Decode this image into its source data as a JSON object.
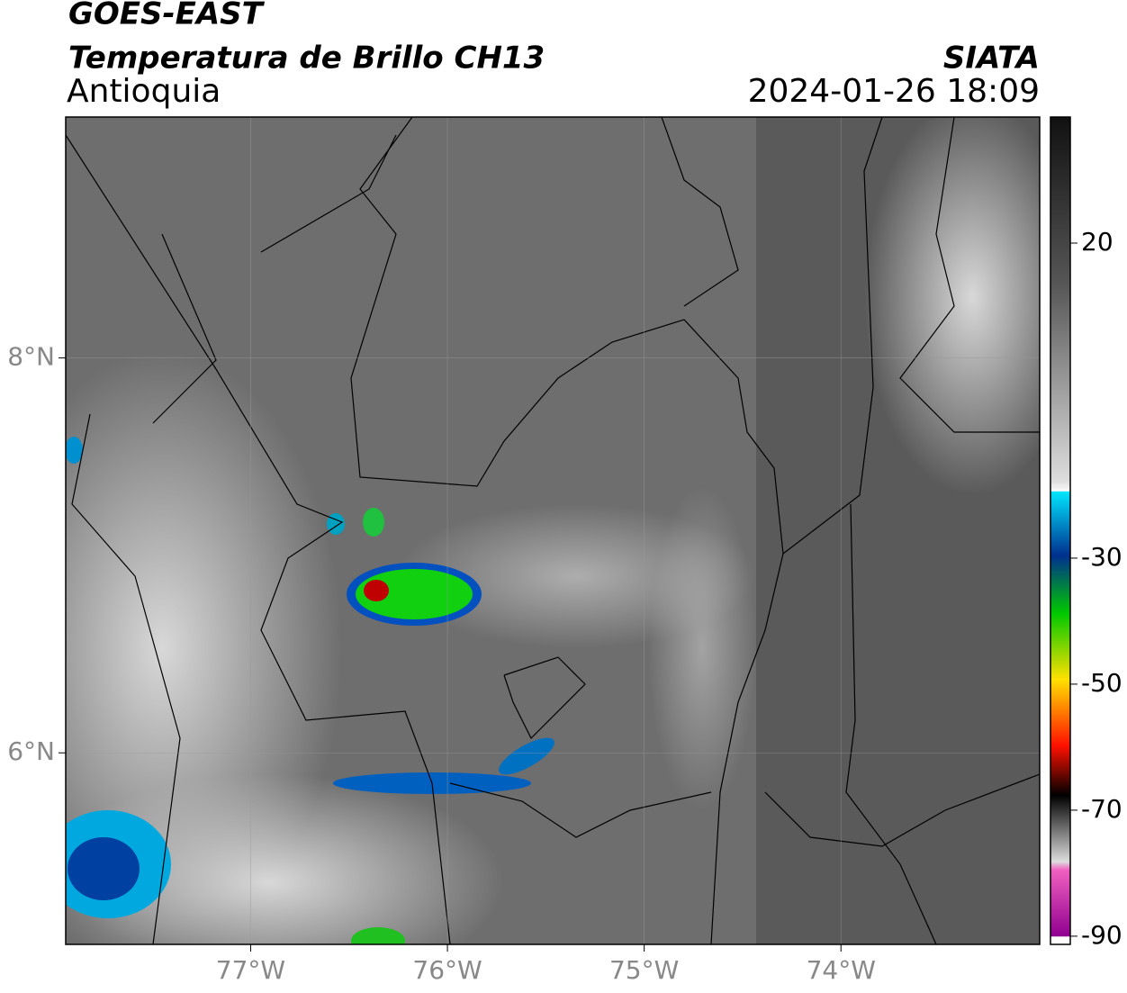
{
  "header": {
    "title": "GOES-EAST",
    "subtitle": "Temperatura de Brillo CH13",
    "region": "Antioquia",
    "source": "SIATA",
    "datetime": "2024-01-26 18:09"
  },
  "map": {
    "xlim": [
      -77.94,
      -72.99
    ],
    "ylim": [
      5.03,
      9.22
    ],
    "xticks": [
      {
        "value": -77,
        "label": "77°W"
      },
      {
        "value": -76,
        "label": "76°W"
      },
      {
        "value": -75,
        "label": "75°W"
      },
      {
        "value": -74,
        "label": "74°W"
      }
    ],
    "yticks": [
      {
        "value": 8,
        "label": "8°N"
      },
      {
        "value": 6,
        "label": "6°N"
      }
    ],
    "grid": true
  },
  "colorbar": {
    "lim": [
      -91.3,
      40
    ],
    "ticks": [
      20,
      -30,
      -50,
      -70,
      -90
    ]
  }
}
